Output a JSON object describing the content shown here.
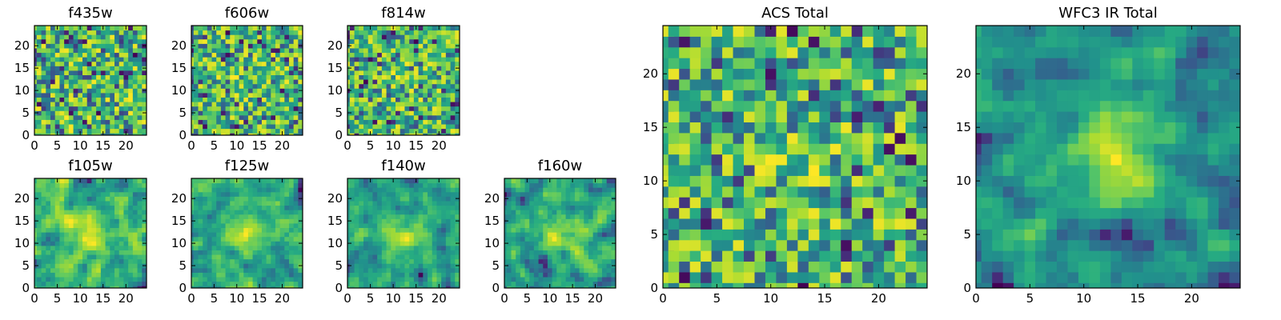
{
  "chart_data": [
    {
      "type": "heatmap",
      "title": "f435w",
      "grid_size": 25,
      "seed": 11,
      "smoothness": 0,
      "center_peak": 0.0,
      "xticks": [
        "0",
        "5",
        "10",
        "15",
        "20"
      ],
      "yticks": [
        "0",
        "5",
        "10",
        "15",
        "20"
      ],
      "colormap": "viridis"
    },
    {
      "type": "heatmap",
      "title": "f606w",
      "grid_size": 25,
      "seed": 23,
      "smoothness": 0,
      "center_peak": 0.1,
      "xticks": [
        "0",
        "5",
        "10",
        "15",
        "20"
      ],
      "yticks": [
        "0",
        "5",
        "10",
        "15",
        "20"
      ],
      "colormap": "viridis"
    },
    {
      "type": "heatmap",
      "title": "f814w",
      "grid_size": 25,
      "seed": 37,
      "smoothness": 0,
      "center_peak": 0.1,
      "xticks": [
        "0",
        "5",
        "10",
        "15",
        "20"
      ],
      "yticks": [
        "0",
        "5",
        "10",
        "15",
        "20"
      ],
      "colormap": "viridis"
    },
    {
      "type": "heatmap",
      "title": "f105w",
      "grid_size": 25,
      "seed": 41,
      "smoothness": 1,
      "center_peak": 0.35,
      "xticks": [
        "0",
        "5",
        "10",
        "15",
        "20"
      ],
      "yticks": [
        "0",
        "5",
        "10",
        "15",
        "20"
      ],
      "colormap": "viridis"
    },
    {
      "type": "heatmap",
      "title": "f125w",
      "grid_size": 25,
      "seed": 53,
      "smoothness": 1,
      "center_peak": 0.3,
      "xticks": [
        "0",
        "5",
        "10",
        "15",
        "20"
      ],
      "yticks": [
        "0",
        "5",
        "10",
        "15",
        "20"
      ],
      "colormap": "viridis"
    },
    {
      "type": "heatmap",
      "title": "f140w",
      "grid_size": 25,
      "seed": 67,
      "smoothness": 1,
      "center_peak": 0.3,
      "xticks": [
        "0",
        "5",
        "10",
        "15",
        "20"
      ],
      "yticks": [
        "0",
        "5",
        "10",
        "15",
        "20"
      ],
      "colormap": "viridis"
    },
    {
      "type": "heatmap",
      "title": "f160w",
      "grid_size": 25,
      "seed": 79,
      "smoothness": 1,
      "center_peak": 0.35,
      "xticks": [
        "0",
        "5",
        "10",
        "15",
        "20"
      ],
      "yticks": [
        "0",
        "5",
        "10",
        "15",
        "20"
      ],
      "colormap": "viridis"
    },
    {
      "type": "heatmap",
      "title": "ACS Total",
      "grid_size": 25,
      "seed": 97,
      "smoothness": 0,
      "center_peak": 0.15,
      "xticks": [
        "0",
        "5",
        "10",
        "15",
        "20"
      ],
      "yticks": [
        "0",
        "5",
        "10",
        "15",
        "20"
      ],
      "colormap": "viridis"
    },
    {
      "type": "heatmap",
      "title": "WFC3 IR Total",
      "grid_size": 25,
      "seed": 131,
      "smoothness": 1,
      "center_peak": 0.55,
      "xticks": [
        "0",
        "5",
        "10",
        "15",
        "20"
      ],
      "yticks": [
        "0",
        "5",
        "10",
        "15",
        "20"
      ],
      "colormap": "viridis"
    }
  ]
}
